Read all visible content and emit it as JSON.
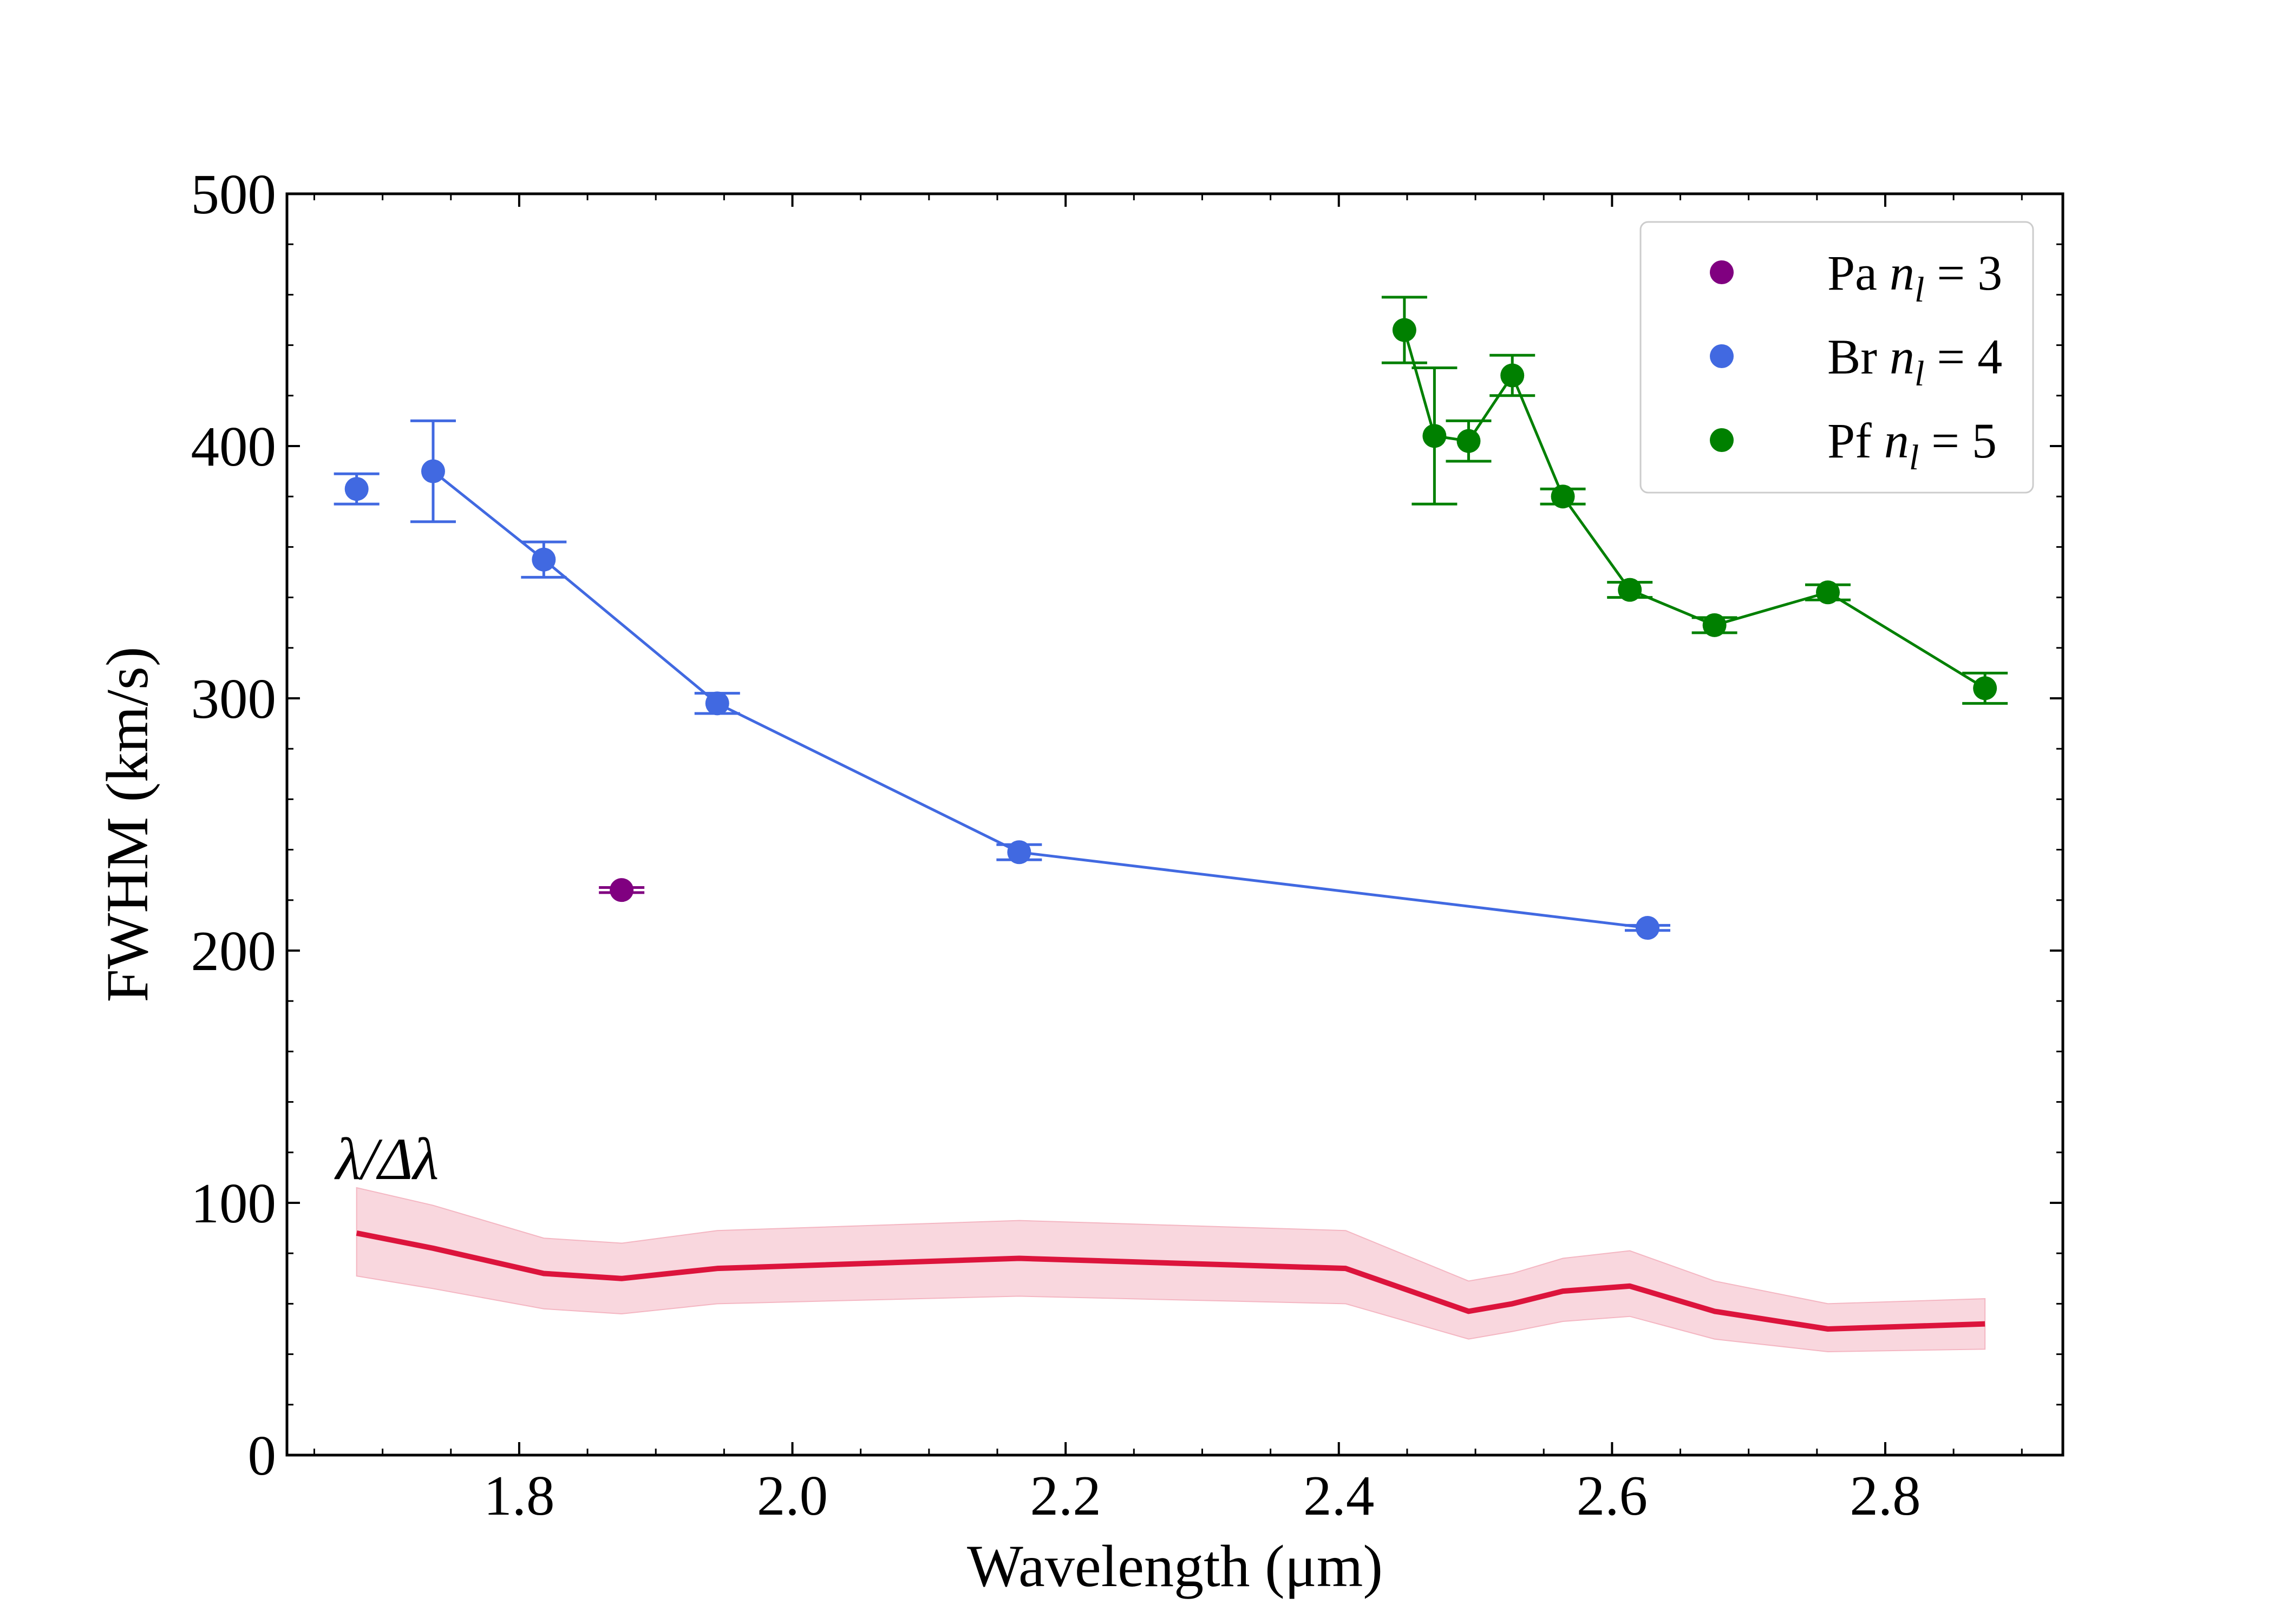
{
  "chart_data": {
    "type": "line",
    "xlabel": "Wavelength (μm)",
    "ylabel": "FWHM (km/s)",
    "xlim": [
      1.63,
      2.93
    ],
    "ylim": [
      0,
      500
    ],
    "xticks": [
      1.8,
      2.0,
      2.2,
      2.4,
      2.6,
      2.8
    ],
    "xtick_labels": [
      "1.8",
      "2.0",
      "2.2",
      "2.4",
      "2.6",
      "2.8"
    ],
    "yticks": [
      0,
      100,
      200,
      300,
      400,
      500
    ],
    "ytick_labels": [
      "0",
      "100",
      "200",
      "300",
      "400",
      "500"
    ],
    "legend_position": "top-right",
    "series": [
      {
        "name": "Pa n_l = 3",
        "legend_prefix": "Pa",
        "legend_n": "n",
        "legend_sub": "l",
        "legend_eq": "= 3",
        "color": "#800080",
        "line": false,
        "points": [
          {
            "x": 1.875,
            "y": 224,
            "err": 1
          }
        ]
      },
      {
        "name": "Br n_l = 4",
        "legend_prefix": "Br",
        "legend_n": "n",
        "legend_sub": "l",
        "legend_eq": "= 4",
        "color": "#4169E1",
        "line": true,
        "line_from": 1,
        "points": [
          {
            "x": 1.681,
            "y": 383,
            "err": 6
          },
          {
            "x": 1.737,
            "y": 390,
            "err": 20
          },
          {
            "x": 1.818,
            "y": 355,
            "err": 7
          },
          {
            "x": 1.945,
            "y": 298,
            "err": 4
          },
          {
            "x": 2.166,
            "y": 239,
            "err": 3
          },
          {
            "x": 2.626,
            "y": 209,
            "err": 1
          }
        ]
      },
      {
        "name": "Pf n_l = 5",
        "legend_prefix": "Pf",
        "legend_n": "n",
        "legend_sub": "l",
        "legend_eq": "= 5",
        "color": "#008000",
        "line": true,
        "line_from": 0,
        "points": [
          {
            "x": 2.448,
            "y": 446,
            "err": 13
          },
          {
            "x": 2.47,
            "y": 404,
            "err": 27
          },
          {
            "x": 2.495,
            "y": 402,
            "err": 8
          },
          {
            "x": 2.527,
            "y": 428,
            "err": 8
          },
          {
            "x": 2.564,
            "y": 380,
            "err": 3
          },
          {
            "x": 2.613,
            "y": 343,
            "err": 3
          },
          {
            "x": 2.675,
            "y": 329,
            "err": 3
          },
          {
            "x": 2.758,
            "y": 342,
            "err": 3
          },
          {
            "x": 2.873,
            "y": 304,
            "err": 6
          }
        ]
      }
    ],
    "resolution": {
      "name": "λ/Δλ",
      "label": "λ/Δλ",
      "color": "#DC143C",
      "band_color": "#F4B6C2",
      "x": [
        1.681,
        1.737,
        1.818,
        1.875,
        1.945,
        2.166,
        2.405,
        2.495,
        2.527,
        2.564,
        2.613,
        2.675,
        2.758,
        2.873
      ],
      "y": [
        88,
        82,
        72,
        70,
        74,
        78,
        74,
        57,
        60,
        65,
        67,
        57,
        50,
        52
      ],
      "lower": [
        71,
        66,
        58,
        56,
        60,
        63,
        60,
        46,
        49,
        53,
        55,
        46,
        41,
        42
      ],
      "upper": [
        106,
        99,
        86,
        84,
        89,
        93,
        89,
        69,
        72,
        78,
        81,
        69,
        60,
        62
      ]
    }
  }
}
